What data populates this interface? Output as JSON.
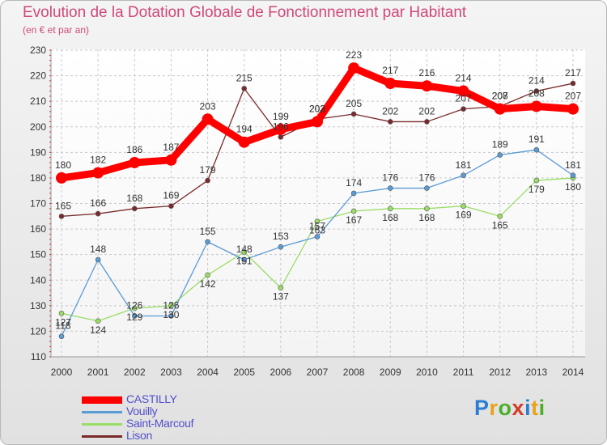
{
  "title": "Evolution de la Dotation Globale de Fonctionnement par Habitant",
  "subtitle": "(en € et par an)",
  "logo": {
    "letters": [
      {
        "ch": "P",
        "color": "#2a7fd4"
      },
      {
        "ch": "r",
        "color": "#e8a21a"
      },
      {
        "ch": "o",
        "color": "#4caf2a"
      },
      {
        "ch": "x",
        "color": "#d33b2c"
      },
      {
        "ch": "i",
        "color": "#2a7fd4"
      },
      {
        "ch": "t",
        "color": "#e8a21a"
      },
      {
        "ch": "i",
        "color": "#4caf2a"
      }
    ]
  },
  "chart_data": {
    "type": "line",
    "x": [
      "2000",
      "2001",
      "2002",
      "2003",
      "2004",
      "2005",
      "2006",
      "2007",
      "2008",
      "2009",
      "2010",
      "2011",
      "2012",
      "2013",
      "2014"
    ],
    "ylim": [
      110,
      230
    ],
    "yticks": [
      110,
      120,
      130,
      140,
      150,
      160,
      170,
      180,
      190,
      200,
      210,
      220,
      230
    ],
    "grid": true,
    "legend_position": "bottom-left",
    "series": [
      {
        "name": "CASTILLY",
        "color": "#ff0000",
        "values": [
          180,
          182,
          186,
          187,
          203,
          194,
          199,
          202,
          223,
          217,
          216,
          214,
          207,
          208,
          207
        ]
      },
      {
        "name": "Vouilly",
        "color": "#5b9bd5",
        "values": [
          118,
          148,
          126,
          126,
          155,
          148,
          153,
          157,
          174,
          176,
          176,
          181,
          189,
          191,
          181
        ]
      },
      {
        "name": "Saint-Marcouf",
        "color": "#99dd66",
        "values": [
          127,
          124,
          129,
          130,
          142,
          151,
          137,
          163,
          167,
          168,
          168,
          169,
          165,
          179,
          180
        ]
      },
      {
        "name": "Lison",
        "color": "#7a2a2a",
        "values": [
          165,
          166,
          168,
          169,
          179,
          215,
          196,
          203,
          205,
          202,
          202,
          207,
          208,
          214,
          217
        ]
      }
    ]
  }
}
